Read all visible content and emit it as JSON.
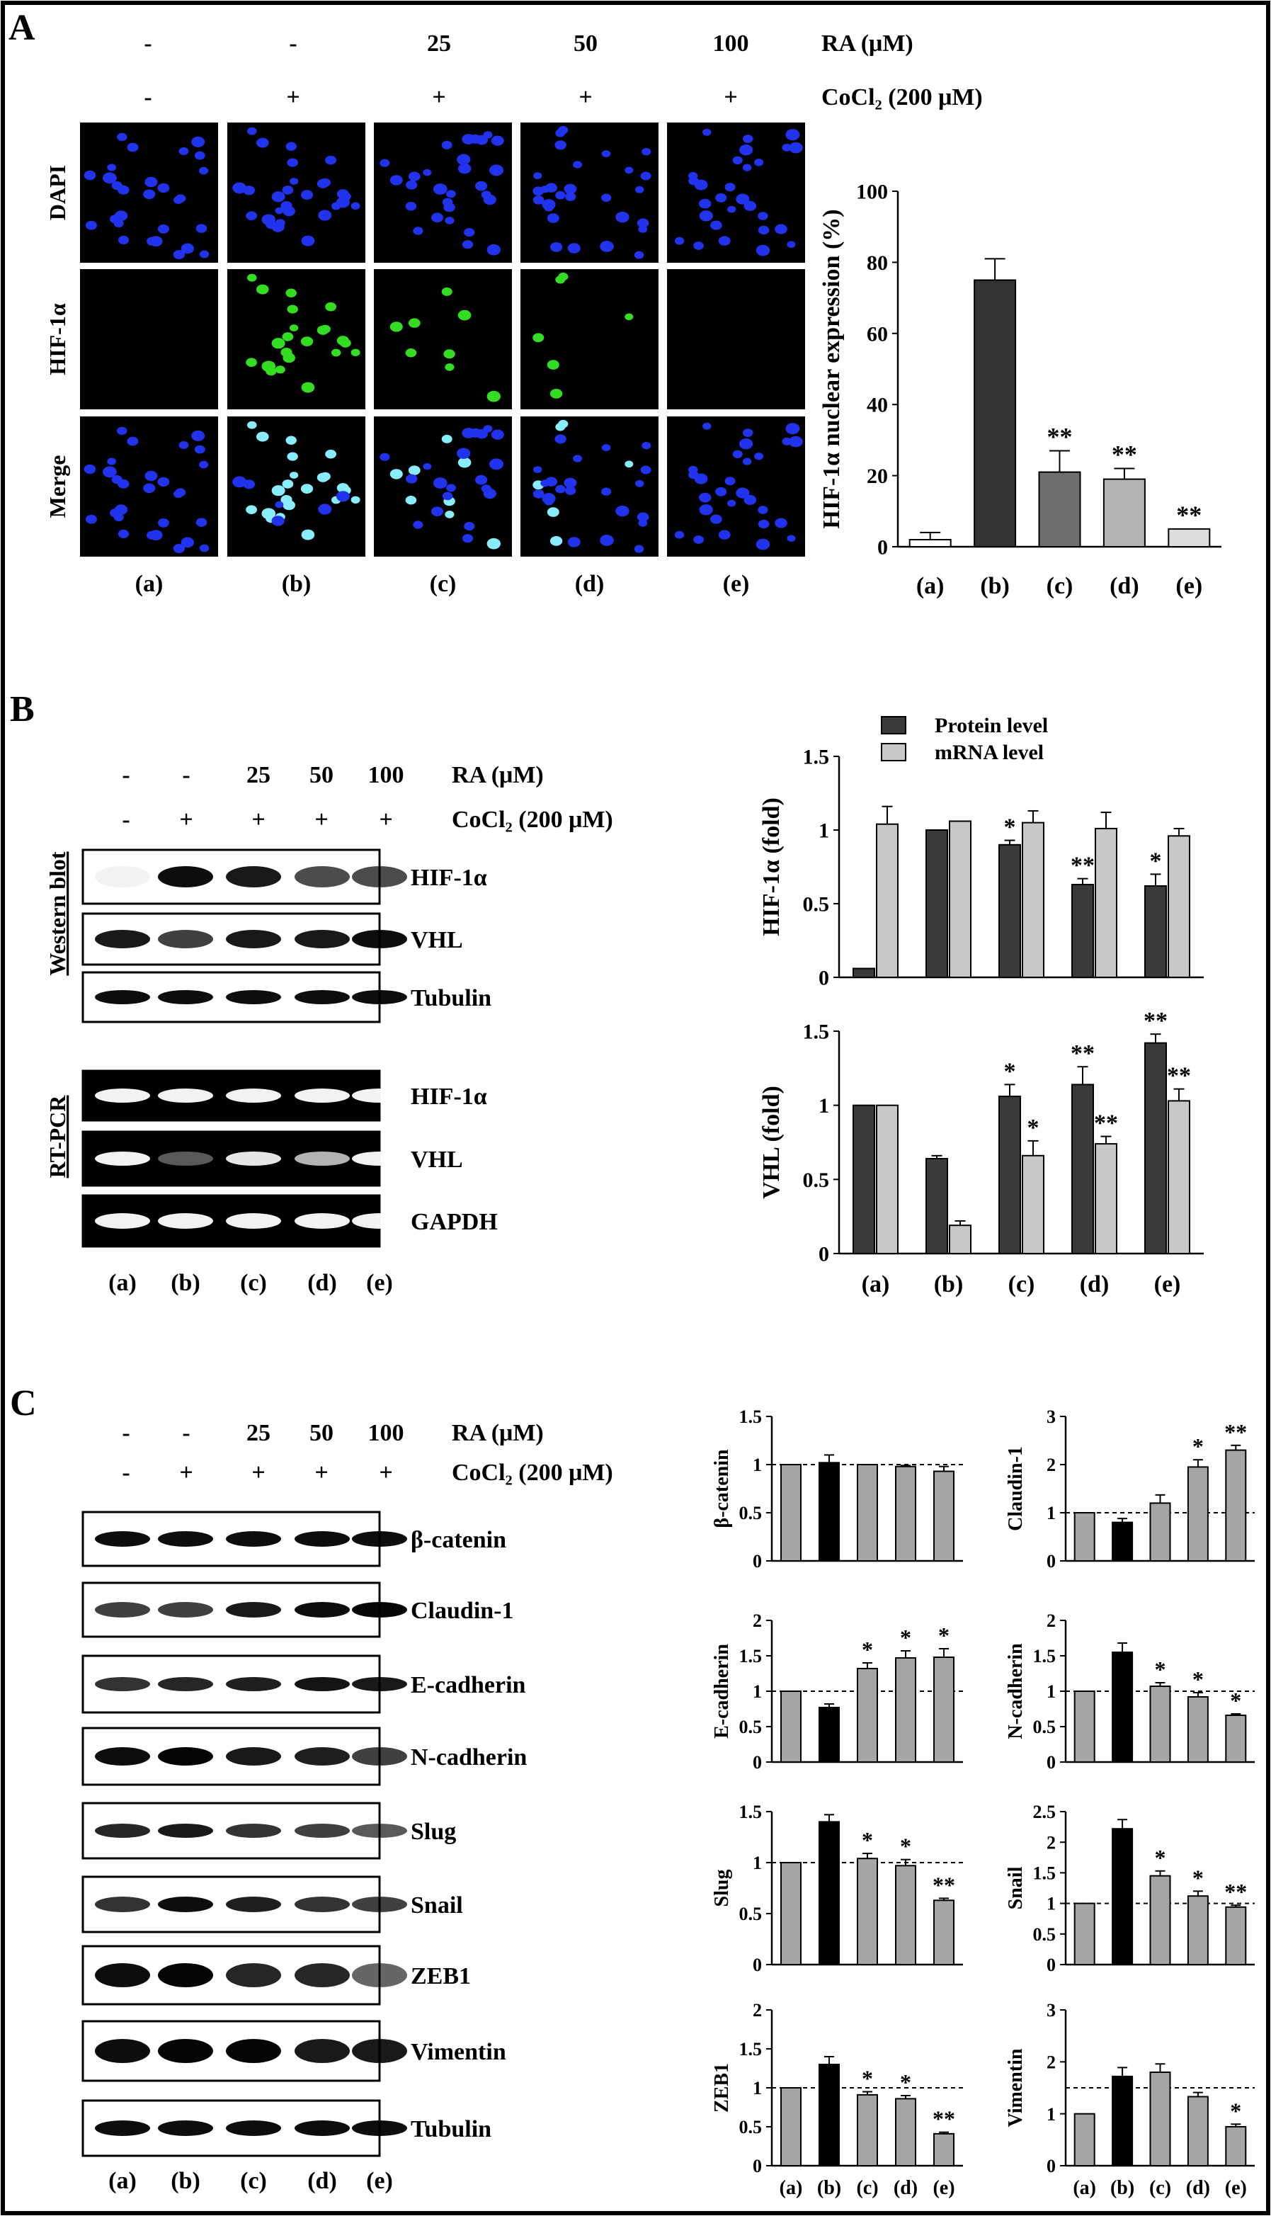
{
  "lanes": [
    "(a)",
    "(b)",
    "(c)",
    "(d)",
    "(e)"
  ],
  "ra_values": [
    "-",
    "-",
    "25",
    "50",
    "100"
  ],
  "cocl2_values": [
    "-",
    "+",
    "+",
    "+",
    "+"
  ],
  "ra_label": "RA (μM)",
  "cocl2_label": "CoCl₂ (200 μM)",
  "colors": {
    "dapi_blue": "#2233ee",
    "hif_green": "#33dd22",
    "merge_cyan": "#88eeff",
    "protein_bar": "#3a3a3a",
    "mrna_bar": "#c8c8c8",
    "grey_bar": "#a6a6a6",
    "black_bar": "#000000"
  },
  "panelA": {
    "letter": "A",
    "row_labels": [
      "DAPI",
      "HIF-1α",
      "Merge"
    ],
    "chart": {
      "type": "bar",
      "ylabel": "HIF-1α nuclear expression (%)",
      "categories": [
        "(a)",
        "(b)",
        "(c)",
        "(d)",
        "(e)"
      ],
      "values": [
        2,
        75,
        21,
        19,
        5
      ],
      "errors": [
        2,
        6,
        6,
        3,
        0
      ],
      "ylim": [
        0,
        100
      ],
      "yticks": [
        0,
        20,
        40,
        60,
        80,
        100
      ],
      "colors": [
        "#ffffff",
        "#333333",
        "#6e6e6e",
        "#b3b3b3",
        "#dddddd"
      ],
      "significance": [
        "",
        "",
        "**",
        "**",
        "**"
      ]
    }
  },
  "panelB": {
    "letter": "B",
    "section_labels": [
      "Western blot",
      "RT-PCR"
    ],
    "wb_bands": [
      "HIF-1α",
      "VHL",
      "Tubulin"
    ],
    "pcr_bands": [
      "HIF-1α",
      "VHL",
      "GAPDH"
    ],
    "legend": [
      "Protein level",
      "mRNA level"
    ],
    "charts": [
      {
        "type": "bar",
        "ylabel": "HIF-1α (fold)",
        "categories": [
          "(a)",
          "(b)",
          "(c)",
          "(d)",
          "(e)"
        ],
        "ylim": [
          0,
          1.5
        ],
        "yticks": [
          "0",
          "0.5",
          "1",
          "1.5"
        ],
        "series": [
          {
            "name": "Protein level",
            "values": [
              0.06,
              1.0,
              0.9,
              0.63,
              0.62
            ],
            "errors": [
              0,
              0,
              0.03,
              0.04,
              0.08
            ],
            "sig": [
              "",
              "",
              "*",
              "**",
              "*"
            ]
          },
          {
            "name": "mRNA level",
            "values": [
              1.04,
              1.06,
              1.05,
              1.01,
              0.96
            ],
            "errors": [
              0.12,
              0,
              0.08,
              0.11,
              0.05
            ],
            "sig": [
              "",
              "",
              "",
              "",
              ""
            ]
          }
        ]
      },
      {
        "type": "bar",
        "ylabel": "VHL (fold)",
        "categories": [
          "(a)",
          "(b)",
          "(c)",
          "(d)",
          "(e)"
        ],
        "ylim": [
          0,
          1.5
        ],
        "yticks": [
          "0",
          "0.5",
          "1",
          "1.5"
        ],
        "series": [
          {
            "name": "Protein level",
            "values": [
              1.0,
              0.64,
              1.06,
              1.14,
              1.42
            ],
            "errors": [
              0,
              0.02,
              0.08,
              0.12,
              0.06
            ],
            "sig": [
              "",
              "",
              "*",
              "**",
              "**"
            ]
          },
          {
            "name": "mRNA level",
            "values": [
              1.0,
              0.19,
              0.66,
              0.74,
              1.03
            ],
            "errors": [
              0,
              0.03,
              0.1,
              0.05,
              0.08
            ],
            "sig": [
              "",
              "",
              "*",
              "**",
              "**"
            ]
          }
        ]
      }
    ]
  },
  "panelC": {
    "letter": "C",
    "bands": [
      "β-catenin",
      "Claudin-1",
      "E-cadherin",
      "N-cadherin",
      "Slug",
      "Snail",
      "ZEB1",
      "Vimentin",
      "Tubulin"
    ],
    "charts": [
      {
        "type": "bar",
        "ylabel": "β-catenin",
        "categories": [
          "(a)",
          "(b)",
          "(c)",
          "(d)",
          "(e)"
        ],
        "ylim": [
          0,
          1.5
        ],
        "yticks": [
          "0",
          "0.5",
          "1",
          "1.5"
        ],
        "values": [
          1.0,
          1.02,
          1.0,
          0.98,
          0.93
        ],
        "errors": [
          0,
          0.08,
          0,
          0.01,
          0.05
        ],
        "sig": [
          "",
          "",
          "",
          "",
          ""
        ],
        "baseline": 1,
        "show_xlabels": false
      },
      {
        "type": "bar",
        "ylabel": "Claudin-1",
        "categories": [
          "(a)",
          "(b)",
          "(c)",
          "(d)",
          "(e)"
        ],
        "ylim": [
          0,
          3
        ],
        "yticks": [
          "0",
          "1",
          "2",
          "3"
        ],
        "values": [
          1.0,
          0.8,
          1.2,
          1.95,
          2.3
        ],
        "errors": [
          0,
          0.08,
          0.17,
          0.15,
          0.1
        ],
        "sig": [
          "",
          "",
          "",
          "*",
          "**"
        ],
        "baseline": 1,
        "show_xlabels": false
      },
      {
        "type": "bar",
        "ylabel": "E-cadherin",
        "categories": [
          "(a)",
          "(b)",
          "(c)",
          "(d)",
          "(e)"
        ],
        "ylim": [
          0,
          2
        ],
        "yticks": [
          "0",
          "0.5",
          "1",
          "1.5",
          "2"
        ],
        "values": [
          1.0,
          0.77,
          1.32,
          1.47,
          1.48
        ],
        "errors": [
          0,
          0.05,
          0.08,
          0.1,
          0.12
        ],
        "sig": [
          "",
          "",
          "*",
          "*",
          "*"
        ],
        "baseline": 1,
        "show_xlabels": false
      },
      {
        "type": "bar",
        "ylabel": "N-cadherin",
        "categories": [
          "(a)",
          "(b)",
          "(c)",
          "(d)",
          "(e)"
        ],
        "ylim": [
          0,
          2
        ],
        "yticks": [
          "0",
          "0.5",
          "1",
          "1.5",
          "2"
        ],
        "values": [
          1.0,
          1.55,
          1.07,
          0.92,
          0.66
        ],
        "errors": [
          0,
          0.13,
          0.05,
          0.06,
          0.02
        ],
        "sig": [
          "",
          "",
          "*",
          "*",
          "*"
        ],
        "baseline": 1,
        "show_xlabels": false
      },
      {
        "type": "bar",
        "ylabel": "Slug",
        "categories": [
          "(a)",
          "(b)",
          "(c)",
          "(d)",
          "(e)"
        ],
        "ylim": [
          0,
          1.5
        ],
        "yticks": [
          "0",
          "0.5",
          "1",
          "1.5"
        ],
        "values": [
          1.0,
          1.4,
          1.04,
          0.97,
          0.63
        ],
        "errors": [
          0,
          0.07,
          0.05,
          0.06,
          0.02
        ],
        "sig": [
          "",
          "",
          "*",
          "*",
          "**"
        ],
        "baseline": 1,
        "show_xlabels": false
      },
      {
        "type": "bar",
        "ylabel": "Snail",
        "categories": [
          "(a)",
          "(b)",
          "(c)",
          "(d)",
          "(e)"
        ],
        "ylim": [
          0,
          2.5
        ],
        "yticks": [
          "0",
          "0.5",
          "1",
          "1.5",
          "2",
          "2.5"
        ],
        "values": [
          1.0,
          2.22,
          1.45,
          1.12,
          0.94
        ],
        "errors": [
          0,
          0.15,
          0.08,
          0.08,
          0.03
        ],
        "sig": [
          "",
          "",
          "*",
          "*",
          "**"
        ],
        "baseline": 1,
        "show_xlabels": false
      },
      {
        "type": "bar",
        "ylabel": "ZEB1",
        "categories": [
          "(a)",
          "(b)",
          "(c)",
          "(d)",
          "(e)"
        ],
        "ylim": [
          0,
          2
        ],
        "yticks": [
          "0",
          "0.5",
          "1",
          "1.5",
          "2"
        ],
        "values": [
          1.0,
          1.3,
          0.91,
          0.86,
          0.41
        ],
        "errors": [
          0,
          0.1,
          0.04,
          0.04,
          0.02
        ],
        "sig": [
          "",
          "",
          "*",
          "*",
          "**"
        ],
        "baseline": 1,
        "show_xlabels": true
      },
      {
        "type": "bar",
        "ylabel": "Vimentin",
        "categories": [
          "(a)",
          "(b)",
          "(c)",
          "(d)",
          "(e)"
        ],
        "ylim": [
          0,
          3
        ],
        "yticks": [
          "0",
          "1",
          "2",
          "3"
        ],
        "values": [
          1.0,
          1.72,
          1.8,
          1.33,
          0.75
        ],
        "errors": [
          0,
          0.17,
          0.16,
          0.08,
          0.05
        ],
        "sig": [
          "",
          "",
          "",
          "",
          "*"
        ],
        "baseline": 1.5,
        "show_xlabels": true
      }
    ]
  }
}
